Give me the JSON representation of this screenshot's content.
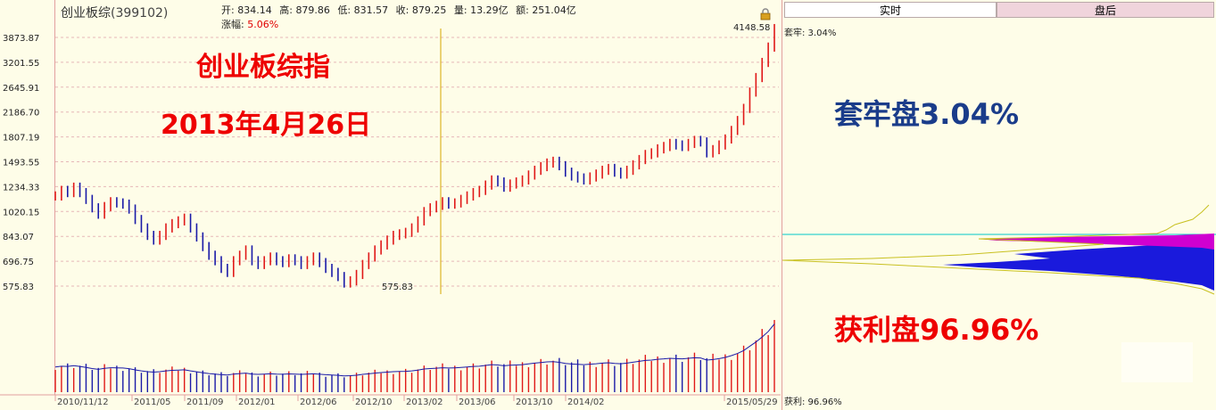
{
  "header": {
    "name": "创业板综",
    "code": "(399102)",
    "open_label": "开:",
    "open": "834.14",
    "high_label": "高:",
    "high": "879.86",
    "low_label": "低:",
    "low": "831.57",
    "close_label": "收:",
    "close": "879.25",
    "volume_label": "量:",
    "volume": "13.29亿",
    "amount_label": "额:",
    "amount": "251.04亿",
    "change_label": "涨幅:",
    "change": "5.06%"
  },
  "overlay": {
    "title": "创业板综指",
    "date": "2013年4月26日"
  },
  "tabs": {
    "realtime": "实时",
    "after": "盘后"
  },
  "chip_panel": {
    "trapped_label": "套牢: 3.04%",
    "profit_label": "获利: 96.96%",
    "trapped_big": "套牢盘3.04%",
    "profit_big": "获利盘96.96%"
  },
  "colors": {
    "up": "#e01818",
    "down": "#1a1aa8",
    "grid": "#e6b8b8",
    "cursor": "#d6a800"
  },
  "chart_data": {
    "type": "line",
    "title": "",
    "y_ticks": [
      3873.87,
      3201.55,
      2645.91,
      2186.7,
      1807.19,
      1493.55,
      1234.33,
      1020.15,
      843.07,
      696.75,
      575.83
    ],
    "y_tick_labels": [
      "3873.87",
      "3201.55",
      "2645.91",
      "2186.70",
      "1807.19",
      "1493.55",
      "1234.33",
      "1020.15",
      "843.07",
      "696.75",
      "575.83"
    ],
    "x_tick_labels": [
      "2010/11/12",
      "2011/05",
      "2011/09",
      "2012/01",
      "2012/06",
      "2012/10",
      "2013/02",
      "2013/06",
      "2013/10",
      "2014/02",
      "2015/05/29"
    ],
    "annotations": {
      "max": 4148.58,
      "max_label": "4148.58",
      "min": 575.83,
      "min_label": "575.83"
    },
    "cursor_date": "2013/04/26",
    "series": [
      {
        "values": [
          1150,
          1200,
          1180,
          1230,
          1180,
          1120,
          1050,
          1000,
          1060,
          1100,
          1090,
          1080,
          1040,
          960,
          900,
          850,
          820,
          850,
          900,
          930,
          950,
          970,
          900,
          840,
          780,
          730,
          700,
          660,
          640,
          700,
          730,
          760,
          700,
          680,
          700,
          720,
          700,
          690,
          710,
          700,
          680,
          700,
          720,
          690,
          660,
          640,
          620,
          590,
          600,
          630,
          680,
          720,
          760,
          790,
          820,
          850,
          860,
          870,
          900,
          950,
          1020,
          1050,
          1070,
          1100,
          1080,
          1090,
          1120,
          1150,
          1180,
          1200,
          1250,
          1300,
          1280,
          1230,
          1260,
          1280,
          1300,
          1350,
          1400,
          1440,
          1480,
          1500,
          1450,
          1380,
          1340,
          1320,
          1300,
          1330,
          1360,
          1400,
          1420,
          1380,
          1360,
          1400,
          1460,
          1520,
          1580,
          1600,
          1650,
          1680,
          1720,
          1700,
          1680,
          1720,
          1760,
          1740,
          1600,
          1640,
          1700,
          1780,
          1900,
          2050,
          2250,
          2550,
          2850,
          3200,
          3600,
          4148.58
        ]
      }
    ]
  }
}
